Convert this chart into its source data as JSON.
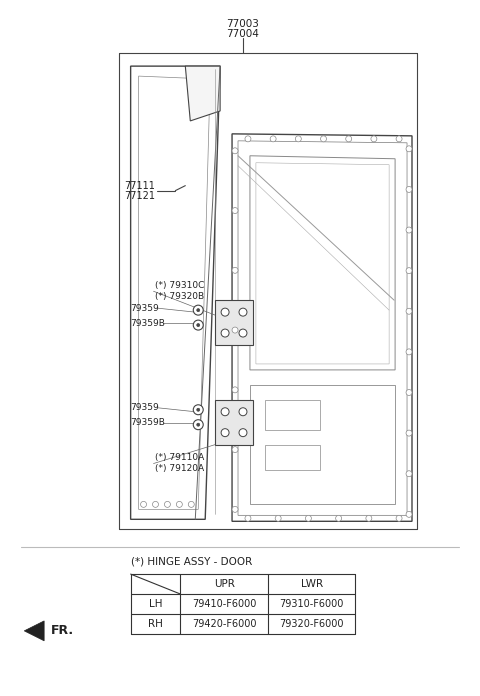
{
  "bg_color": "#ffffff",
  "text_color": "#222222",
  "line_color": "#444444",
  "labels_top": [
    "77003",
    "77004"
  ],
  "labels_left_door": [
    "77111",
    "77121"
  ],
  "part_labels_upper_hinge": [
    "(*) 79310C",
    "(*) 79320B"
  ],
  "part_labels_lower_hinge": [
    "(*) 79110A",
    "(*) 79120A"
  ],
  "part_label_bolt_upper": [
    "79359",
    "79359B"
  ],
  "part_label_bolt_lower": [
    "79359",
    "79359B"
  ],
  "hinge_title": "(*) HINGE ASSY - DOOR",
  "table_headers": [
    "",
    "UPR",
    "LWR"
  ],
  "table_rows": [
    [
      "LH",
      "79410-F6000",
      "79310-F6000"
    ],
    [
      "RH",
      "79420-F6000",
      "79320-F6000"
    ]
  ],
  "fr_label": "FR."
}
